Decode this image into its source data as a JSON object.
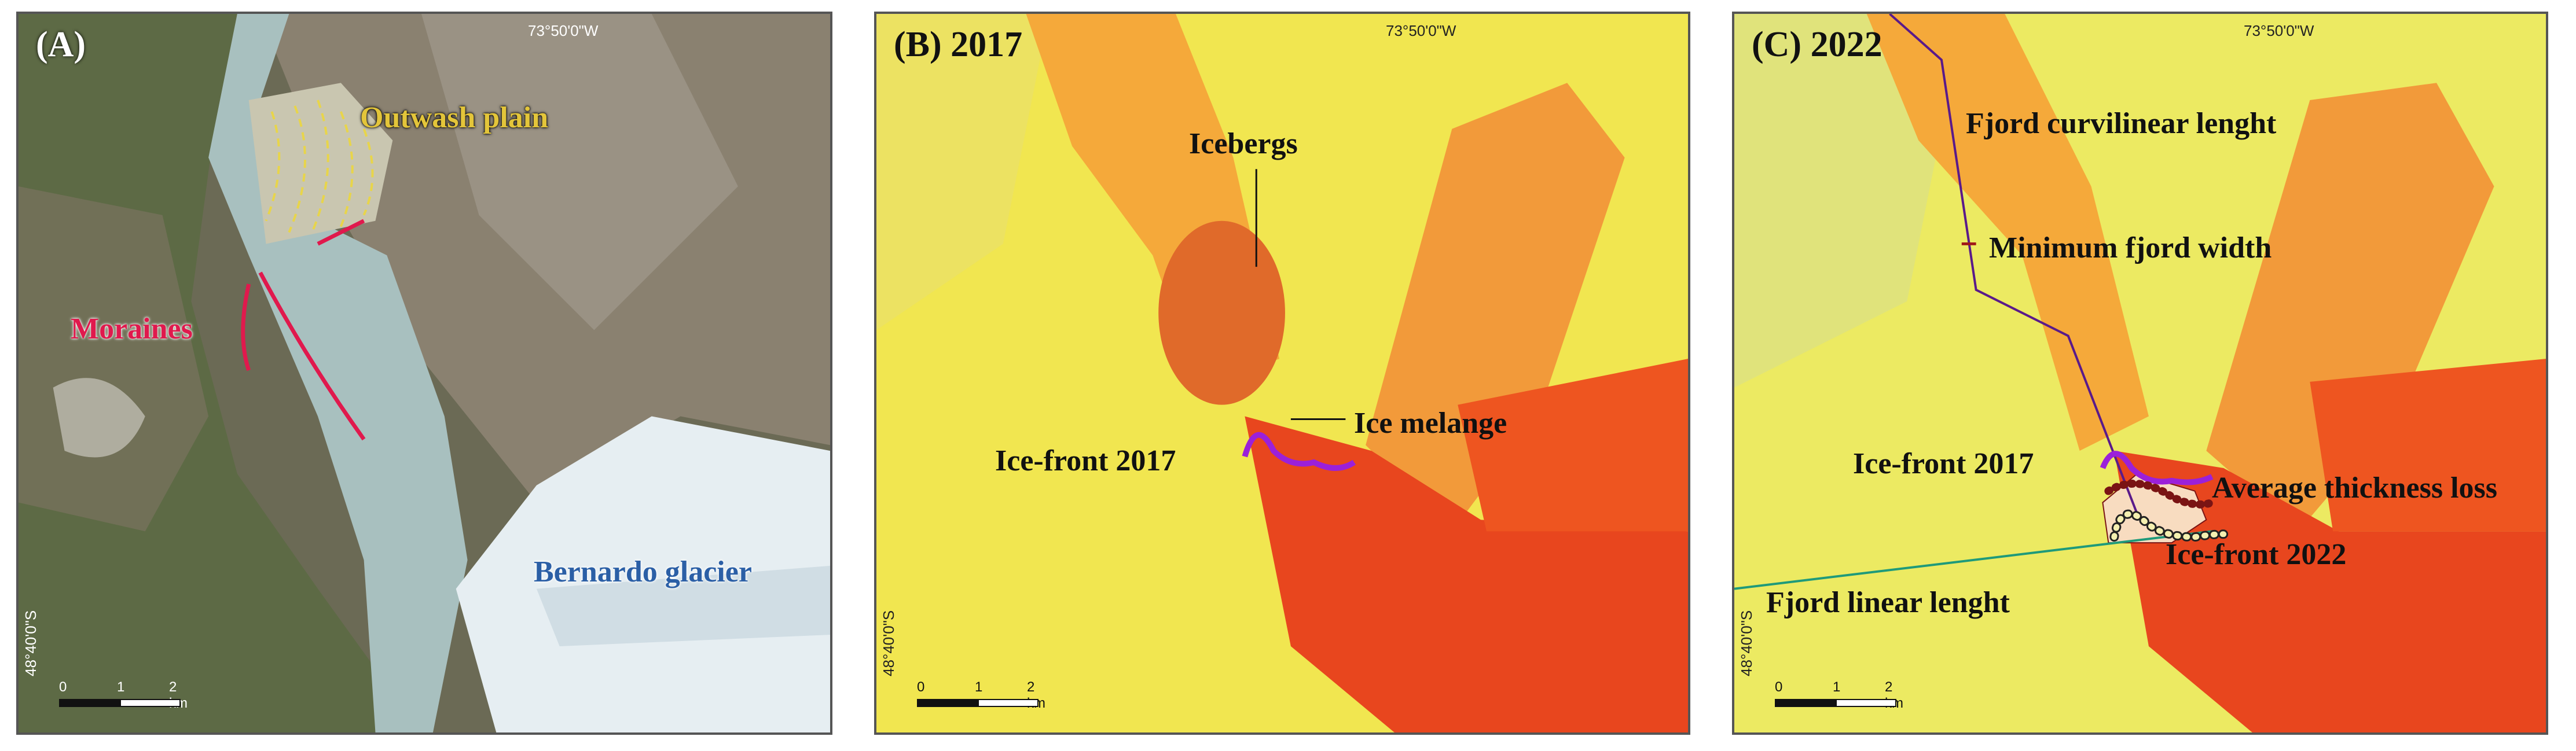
{
  "panels": {
    "a": {
      "label": "(A)",
      "longitude": "73°50'0\"W",
      "latitude": "48°40'0\"S",
      "annotations": {
        "outwash": "Outwash plain",
        "moraines": "Moraines",
        "glacier": "Bernardo glacier"
      },
      "scale": [
        "0",
        "1",
        "2 km"
      ]
    },
    "b": {
      "label": "(B) 2017",
      "longitude": "73°50'0\"W",
      "latitude": "48°40'0\"S",
      "annotations": {
        "icebergs": "Icebergs",
        "melange": "Ice melange",
        "front2017": "Ice-front 2017"
      },
      "scale": [
        "0",
        "1",
        "2 km"
      ]
    },
    "c": {
      "label": "(C) 2022",
      "longitude": "73°50'0\"W",
      "latitude": "48°40'0\"S",
      "annotations": {
        "curvilinear": "Fjord curvilinear lenght",
        "min_width": "Minimum fjord width",
        "front2017": "Ice-front 2017",
        "thickness": "Average thickness loss",
        "front2022": "Ice-front 2022",
        "linear": "Fjord linear lenght"
      },
      "scale": [
        "0",
        "1",
        "2 km"
      ]
    }
  },
  "colors": {
    "moraine_line": "#e0194d",
    "outwash_dash": "#e8d54a",
    "front_2017": "#9b20d9",
    "front_2022_dots": "#f4f0b0",
    "thickness_dots": "#7a1414",
    "curvilinear_line": "#5a1a8a",
    "linear_line": "#1f9a7a",
    "velocity_low": "#f2ea4a",
    "velocity_high": "#e8371a"
  }
}
